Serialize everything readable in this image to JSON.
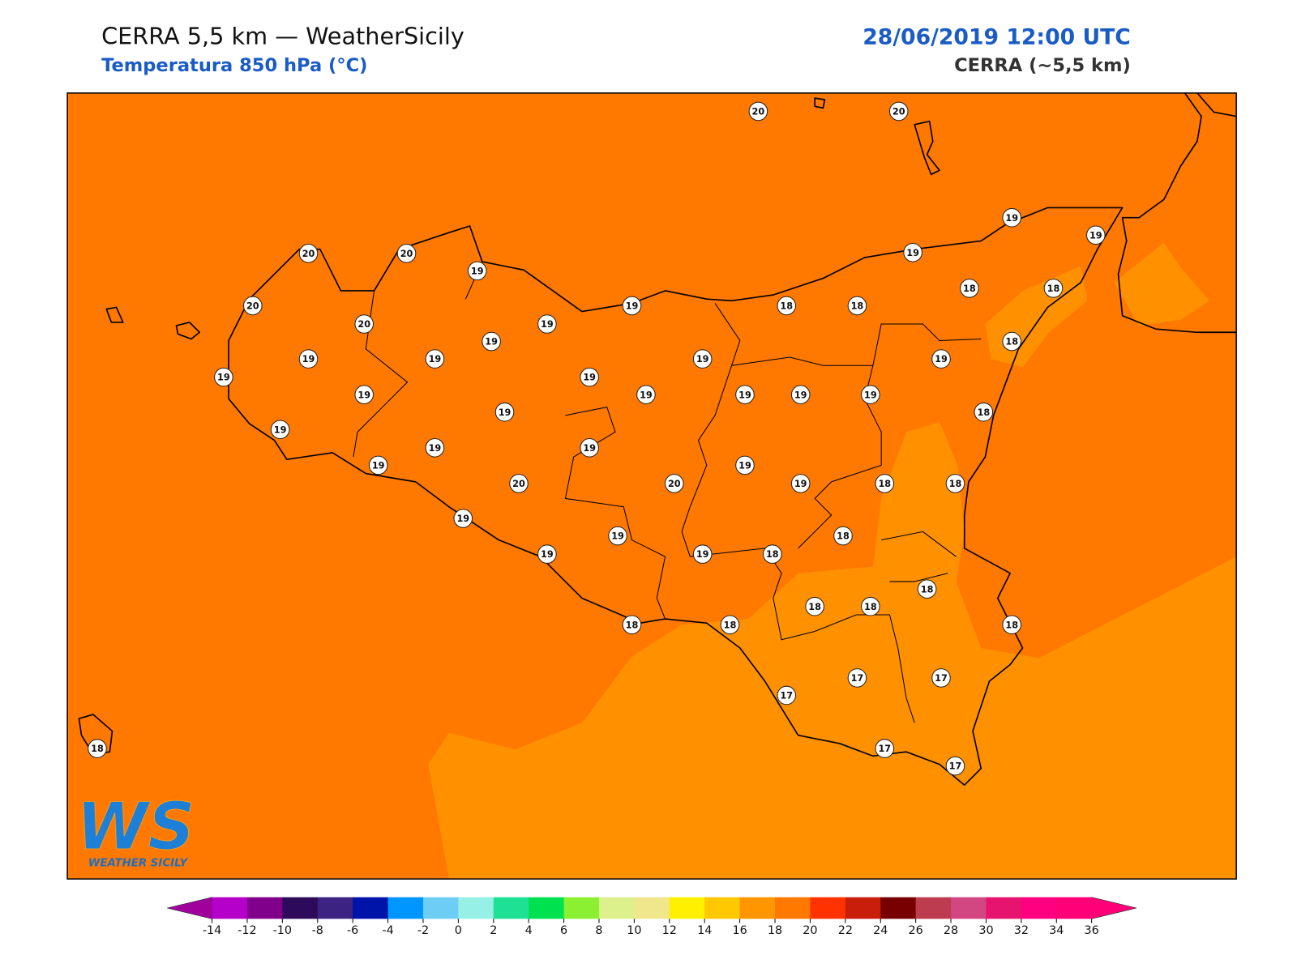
{
  "header": {
    "title": "CERRA 5,5 km — WeatherSicily",
    "subtitle": "Temperatura 850 hPa (°C)",
    "datetime": "28/06/2019 12:00 UTC",
    "model": "CERRA (~5,5 km)"
  },
  "logo": {
    "mark": "WS",
    "name": "Weather Sicily"
  },
  "stations": [
    {
      "value": 20
    },
    {
      "value": 20
    },
    {
      "value": 20
    },
    {
      "value": 20
    },
    {
      "value": 19
    },
    {
      "value": 20
    },
    {
      "value": 20
    },
    {
      "value": 19
    },
    {
      "value": 19
    },
    {
      "value": 19
    },
    {
      "value": 18
    },
    {
      "value": 18
    },
    {
      "value": 19
    },
    {
      "value": 19
    },
    {
      "value": 19
    },
    {
      "value": 18
    },
    {
      "value": 18
    },
    {
      "value": 18
    },
    {
      "value": 19
    },
    {
      "value": 19
    },
    {
      "value": 19
    },
    {
      "value": 19
    },
    {
      "value": 19
    },
    {
      "value": 19
    },
    {
      "value": 19
    },
    {
      "value": 19
    },
    {
      "value": 19
    },
    {
      "value": 19
    },
    {
      "value": 19
    },
    {
      "value": 19
    },
    {
      "value": 19
    },
    {
      "value": 18
    },
    {
      "value": 19
    },
    {
      "value": 19
    },
    {
      "value": 19
    },
    {
      "value": 19
    },
    {
      "value": 20
    },
    {
      "value": 20
    },
    {
      "value": 19
    },
    {
      "value": 18
    },
    {
      "value": 18
    },
    {
      "value": 19
    },
    {
      "value": 18
    },
    {
      "value": 19
    },
    {
      "value": 19
    },
    {
      "value": 19
    },
    {
      "value": 18
    },
    {
      "value": 18
    },
    {
      "value": 18
    },
    {
      "value": 18
    },
    {
      "value": 18
    },
    {
      "value": 18
    },
    {
      "value": 18
    },
    {
      "value": 17
    },
    {
      "value": 17
    },
    {
      "value": 17
    },
    {
      "value": 18
    },
    {
      "value": 17
    },
    {
      "value": 17
    }
  ],
  "colorbar": {
    "ticks": [
      -14,
      -12,
      -10,
      -8,
      -6,
      -4,
      -2,
      0,
      2,
      4,
      6,
      8,
      10,
      12,
      14,
      16,
      18,
      20,
      22,
      24,
      26,
      28,
      30,
      32,
      34,
      36
    ],
    "colors": [
      "#b400c8",
      "#80008c",
      "#2d0a5a",
      "#3c2382",
      "#0014aa",
      "#0096ff",
      "#6ecdf5",
      "#96f0e6",
      "#1ee196",
      "#00e150",
      "#8cf032",
      "#dcf08c",
      "#f0e68c",
      "#fff000",
      "#ffc800",
      "#ff9600",
      "#ff7800",
      "#ff3200",
      "#c81e0a",
      "#780000",
      "#be3c50",
      "#d24682",
      "#e6146e",
      "#ff0080",
      "#ff0078"
    ],
    "under_color": "#a0009b",
    "over_color": "#ff0078"
  }
}
